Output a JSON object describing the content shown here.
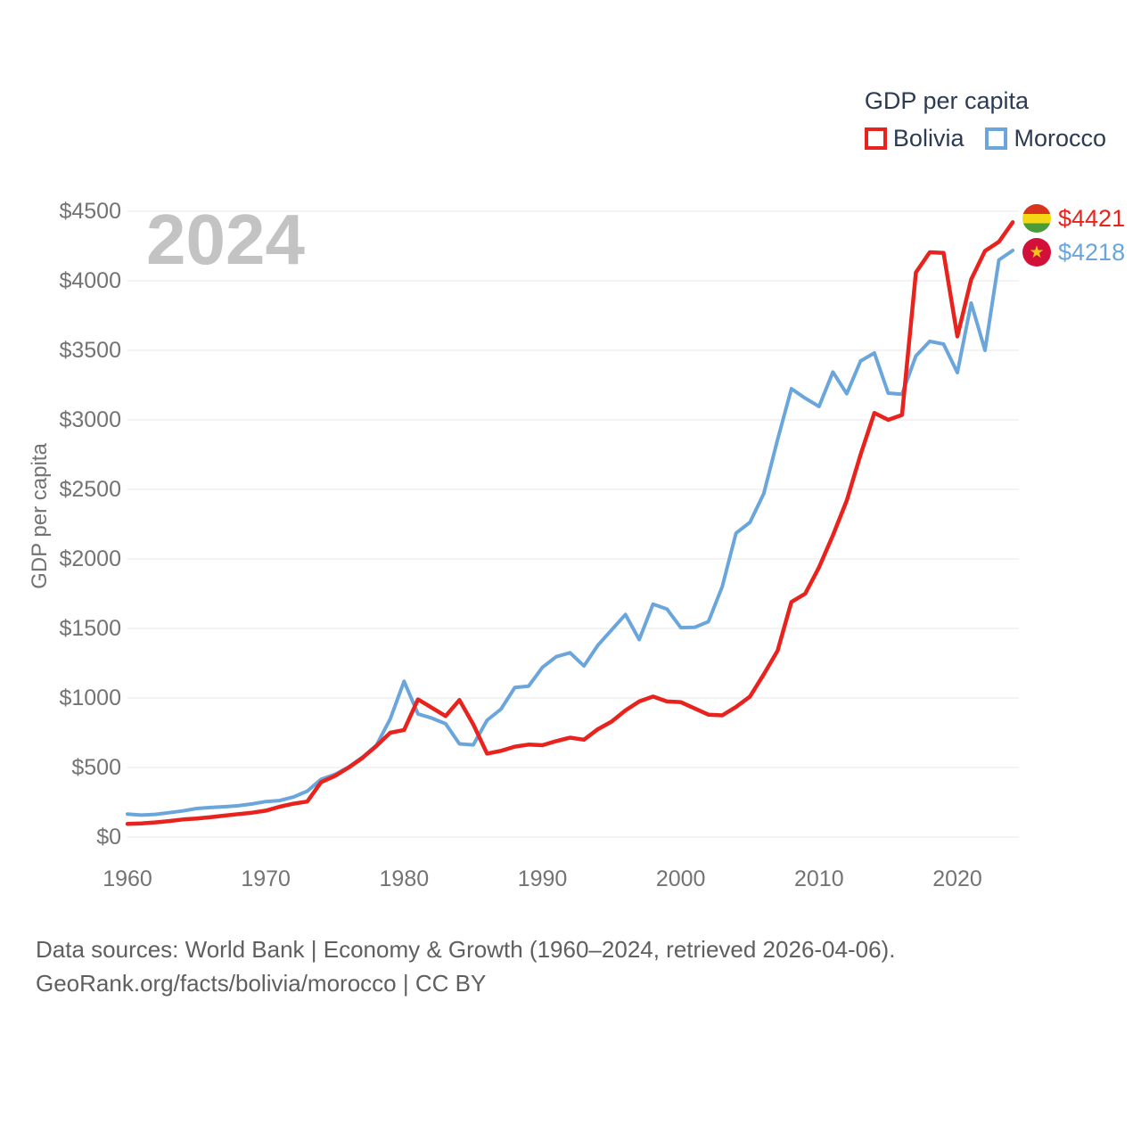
{
  "legend": {
    "title": "GDP per capita",
    "items": [
      {
        "label": "Bolivia",
        "color": "#e8231e"
      },
      {
        "label": "Morocco",
        "color": "#6aa5dc"
      }
    ]
  },
  "footer": {
    "line1": "Data sources: World Bank | Economy & Growth (1960–2024, retrieved 2026-04-06).",
    "line2": "GeoRank.org/facts/bolivia/morocco | CC BY"
  },
  "chart_data": {
    "type": "line",
    "title": "GDP per capita",
    "ylabel": "GDP per capita",
    "watermark": "2024",
    "xlim": [
      1960,
      2024
    ],
    "ylim": [
      0,
      4500
    ],
    "grid": "horizontal",
    "legend_position": "top-right",
    "colors": {
      "bolivia_red": "#e8231e",
      "morocco_blue": "#6aa5dc",
      "gridline": "#e7e7e7",
      "tick_text": "#737373",
      "legend_text": "#2c3b53",
      "watermark": "#c3c3c3",
      "footer_text": "#5f5f5f"
    },
    "xticks": [
      1960,
      1970,
      1980,
      1990,
      2000,
      2010,
      2020
    ],
    "yticks": {
      "values": [
        0,
        500,
        1000,
        1500,
        2000,
        2500,
        3000,
        3500,
        4000,
        4500
      ],
      "labels": [
        "$0",
        "$500",
        "$1000",
        "$1500",
        "$2000",
        "$2500",
        "$3000",
        "$3500",
        "$4000",
        "$4500"
      ]
    },
    "years": [
      1960,
      1961,
      1962,
      1963,
      1964,
      1965,
      1966,
      1967,
      1968,
      1969,
      1970,
      1971,
      1972,
      1973,
      1974,
      1975,
      1976,
      1977,
      1978,
      1979,
      1980,
      1981,
      1982,
      1983,
      1984,
      1985,
      1986,
      1987,
      1988,
      1989,
      1990,
      1991,
      1992,
      1993,
      1994,
      1995,
      1996,
      1997,
      1998,
      1999,
      2000,
      2001,
      2002,
      2003,
      2004,
      2005,
      2006,
      2007,
      2008,
      2009,
      2010,
      2011,
      2012,
      2013,
      2014,
      2015,
      2016,
      2017,
      2018,
      2019,
      2020,
      2021,
      2022,
      2023,
      2024
    ],
    "series": [
      {
        "name": "Bolivia",
        "color": "#e8231e",
        "end_label": "$4421",
        "flag": "bolivia",
        "values": [
          95,
          98,
          105,
          115,
          126,
          133,
          143,
          154,
          165,
          175,
          190,
          218,
          240,
          255,
          395,
          440,
          500,
          570,
          655,
          750,
          770,
          990,
          930,
          870,
          985,
          810,
          600,
          620,
          650,
          665,
          660,
          690,
          715,
          700,
          775,
          830,
          910,
          975,
          1010,
          975,
          970,
          925,
          880,
          875,
          935,
          1010,
          1170,
          1340,
          1690,
          1750,
          1940,
          2170,
          2420,
          2750,
          3050,
          3000,
          3035,
          4060,
          4205,
          4200,
          3600,
          4010,
          4215,
          4280,
          4421
        ]
      },
      {
        "name": "Morocco",
        "color": "#6aa5dc",
        "end_label": "$4218",
        "flag": "morocco",
        "values": [
          165,
          158,
          163,
          175,
          188,
          205,
          212,
          218,
          225,
          238,
          255,
          262,
          288,
          330,
          415,
          450,
          505,
          575,
          660,
          850,
          1120,
          885,
          855,
          815,
          670,
          663,
          840,
          920,
          1075,
          1085,
          1220,
          1297,
          1325,
          1230,
          1378,
          1489,
          1600,
          1420,
          1675,
          1640,
          1506,
          1508,
          1549,
          1800,
          2185,
          2263,
          2470,
          2857,
          3224,
          3156,
          3096,
          3344,
          3188,
          3423,
          3481,
          3192,
          3184,
          3460,
          3565,
          3545,
          3340,
          3840,
          3500,
          4150,
          4218
        ]
      }
    ]
  }
}
